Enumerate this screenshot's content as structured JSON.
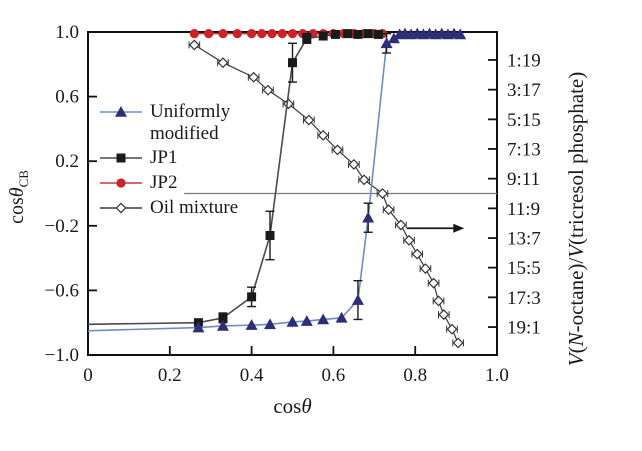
{
  "chart_data": {
    "type": "line",
    "title": "",
    "xlabel_parts": {
      "prefix": "cos",
      "symbol": "θ"
    },
    "ylabel_left_parts": {
      "prefix": "cos",
      "symbol": "θ",
      "sub": "CB"
    },
    "ylabel_right_parts": {
      "v1": "V",
      "open": "(",
      "n": "N",
      "octane": "-octane)/",
      "v2": "V",
      "phosphate": "(tricresol phosphate)"
    },
    "x_axis": {
      "min": 0,
      "max": 1.0,
      "ticks": [
        0,
        0.2,
        0.4,
        0.6,
        0.8,
        1.0
      ],
      "tick_labels": [
        "0",
        "0.2",
        "0.4",
        "0.6",
        "0.8",
        "1.0"
      ]
    },
    "y_axis_left": {
      "min": -1.0,
      "max": 1.0,
      "ticks": [
        1.0,
        0.6,
        0.2,
        -0.2,
        -0.6,
        -1.0
      ],
      "tick_labels": [
        "1.0",
        "0.6",
        "0.2",
        "−0.2",
        "−0.6",
        "−1.0"
      ]
    },
    "y_axis_right": {
      "tick_labels": [
        "1:19",
        "3:17",
        "5:15",
        "7:13",
        "9:11",
        "11:9",
        "13:7",
        "15:5",
        "17:3",
        "19:1"
      ],
      "tick_positions": [
        0.827,
        0.643,
        0.459,
        0.276,
        0.092,
        -0.092,
        -0.276,
        -0.459,
        -0.643,
        -0.827
      ]
    },
    "zero_line": {
      "y": 0,
      "x_start": 0.235,
      "x_end": 1.0,
      "color": "#7a7a7a"
    },
    "right_axis_arrow": {
      "y": -0.215,
      "x_start": 0.78,
      "x_end": 0.92,
      "color": "#1a1a1a"
    },
    "frame_color": "#111111",
    "legend": {
      "position": "upper-left-inside",
      "items": [
        {
          "line1": "Uniformly",
          "line2": "modified"
        },
        {
          "line1": "JP1"
        },
        {
          "line1": "JP2"
        },
        {
          "line1": "Oil mixture"
        }
      ]
    },
    "series": [
      {
        "name": "Uniformly modified",
        "marker": "triangle",
        "line_color": "#6a8fc2",
        "marker_color": "#2e2e78",
        "error_type": "y",
        "line_start": [
          0,
          -0.85
        ],
        "points": [
          [
            0.27,
            -0.83,
            0
          ],
          [
            0.33,
            -0.82,
            0
          ],
          [
            0.4,
            -0.815,
            0
          ],
          [
            0.445,
            -0.81,
            0
          ],
          [
            0.5,
            -0.795,
            0
          ],
          [
            0.535,
            -0.79,
            0
          ],
          [
            0.575,
            -0.78,
            0
          ],
          [
            0.62,
            -0.77,
            0
          ],
          [
            0.66,
            -0.66,
            0.12
          ],
          [
            0.685,
            -0.15,
            0.09
          ],
          [
            0.73,
            0.93,
            0.06
          ],
          [
            0.748,
            0.96,
            0
          ],
          [
            0.762,
            0.985,
            0
          ],
          [
            0.775,
            0.99,
            0
          ],
          [
            0.79,
            0.985,
            0
          ],
          [
            0.805,
            0.99,
            0
          ],
          [
            0.82,
            0.985,
            0
          ],
          [
            0.835,
            0.99,
            0
          ],
          [
            0.85,
            0.985,
            0
          ],
          [
            0.865,
            0.99,
            0
          ],
          [
            0.88,
            0.985,
            0
          ],
          [
            0.895,
            0.99,
            0
          ],
          [
            0.91,
            0.985,
            0
          ]
        ]
      },
      {
        "name": "JP1",
        "marker": "square",
        "line_color": "#4a4a4a",
        "marker_color": "#1a1a1a",
        "error_type": "y",
        "line_start": [
          0,
          -0.81
        ],
        "points": [
          [
            0.27,
            -0.8,
            0
          ],
          [
            0.33,
            -0.77,
            0.03
          ],
          [
            0.4,
            -0.64,
            0.06
          ],
          [
            0.445,
            -0.26,
            0.15
          ],
          [
            0.5,
            0.81,
            0.12
          ],
          [
            0.535,
            0.96,
            0.03
          ],
          [
            0.575,
            0.975,
            0
          ],
          [
            0.605,
            0.985,
            0
          ],
          [
            0.635,
            0.99,
            0
          ],
          [
            0.66,
            0.985,
            0
          ],
          [
            0.685,
            0.99,
            0
          ],
          [
            0.71,
            0.985,
            0
          ]
        ]
      },
      {
        "name": "JP2",
        "marker": "circle",
        "line_color": "#c23b3b",
        "marker_color": "#ce2127",
        "error_type": "none",
        "points": [
          [
            0.26,
            0.99,
            0
          ],
          [
            0.295,
            0.99,
            0
          ],
          [
            0.33,
            0.99,
            0
          ],
          [
            0.365,
            0.99,
            0
          ],
          [
            0.4,
            0.99,
            0
          ],
          [
            0.425,
            0.99,
            0
          ],
          [
            0.45,
            0.99,
            0
          ],
          [
            0.475,
            0.99,
            0
          ],
          [
            0.5,
            0.99,
            0
          ],
          [
            0.525,
            0.99,
            0
          ],
          [
            0.55,
            0.99,
            0
          ],
          [
            0.575,
            0.99,
            0
          ],
          [
            0.6,
            0.99,
            0
          ],
          [
            0.625,
            0.99,
            0
          ],
          [
            0.65,
            0.99,
            0
          ],
          [
            0.675,
            0.99,
            0
          ],
          [
            0.7,
            0.99,
            0
          ],
          [
            0.72,
            0.99,
            0
          ]
        ]
      },
      {
        "name": "Oil mixture",
        "marker": "diamond-open",
        "line_color": "#3a3a3a",
        "marker_color": "#ffffff",
        "marker_stroke": "#333333",
        "error_type": "x",
        "x_error": 0.013,
        "points": [
          [
            0.26,
            0.92
          ],
          [
            0.33,
            0.81
          ],
          [
            0.405,
            0.72
          ],
          [
            0.44,
            0.64
          ],
          [
            0.49,
            0.555
          ],
          [
            0.54,
            0.455
          ],
          [
            0.575,
            0.36
          ],
          [
            0.61,
            0.27
          ],
          [
            0.65,
            0.18
          ],
          [
            0.675,
            0.085
          ],
          [
            0.72,
            0.0
          ],
          [
            0.735,
            -0.1
          ],
          [
            0.765,
            -0.195
          ],
          [
            0.785,
            -0.29
          ],
          [
            0.805,
            -0.375
          ],
          [
            0.825,
            -0.465
          ],
          [
            0.845,
            -0.555
          ],
          [
            0.857,
            -0.665
          ],
          [
            0.87,
            -0.75
          ],
          [
            0.89,
            -0.84
          ],
          [
            0.905,
            -0.925
          ]
        ]
      }
    ]
  }
}
